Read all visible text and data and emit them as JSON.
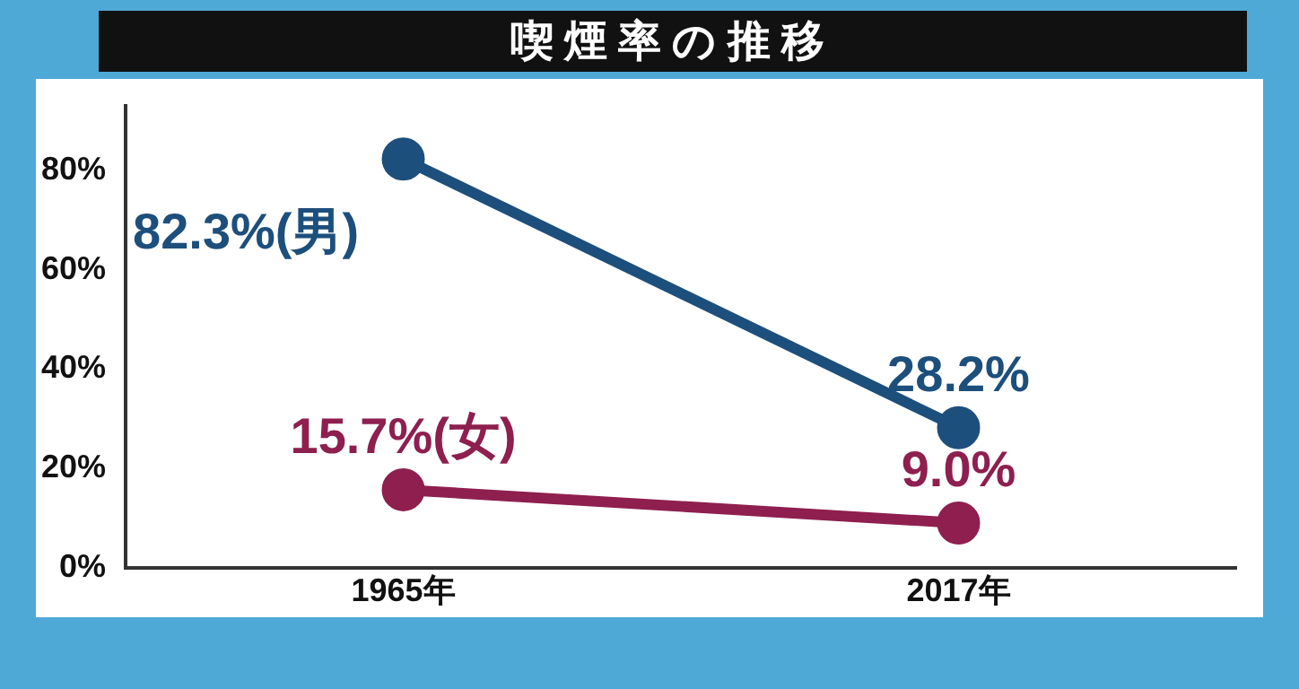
{
  "chart_data": {
    "type": "line",
    "title": "喫煙率の推移",
    "categories": [
      "1965年",
      "2017年"
    ],
    "series": [
      {
        "color": "#1d4f7c",
        "values": [
          82.3,
          28.2
        ],
        "value_labels": [
          "82.3%(男)",
          "28.2%"
        ]
      },
      {
        "color": "#8e1f4f",
        "values": [
          15.7,
          9.0
        ],
        "value_labels": [
          "15.7%(女)",
          "9.0%"
        ]
      }
    ],
    "ylim": [
      0,
      93
    ],
    "yticks": [
      {
        "value": 0,
        "label": "0%"
      },
      {
        "value": 20,
        "label": "20%"
      },
      {
        "value": 40,
        "label": "40%"
      },
      {
        "value": 60,
        "label": "60%"
      },
      {
        "value": 80,
        "label": "80%"
      }
    ],
    "grid": false,
    "legend": false,
    "marker": "circle",
    "line_style": "solid"
  }
}
